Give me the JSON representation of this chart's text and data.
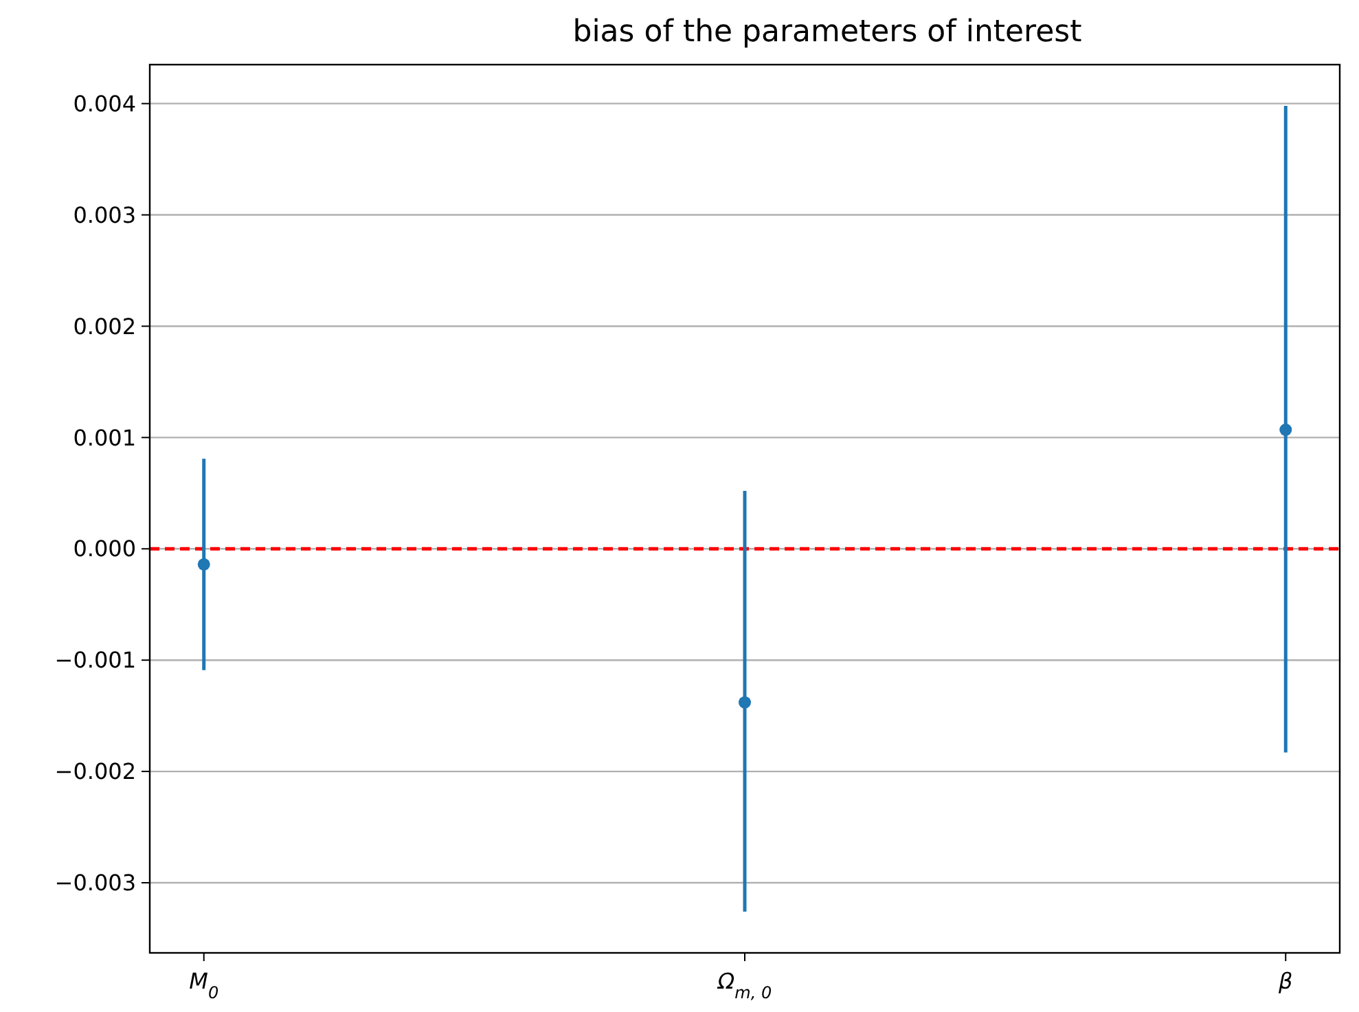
{
  "chart_data": {
    "type": "scatter",
    "title": "bias of the parameters of interest",
    "categories": [
      "M$_{0}$",
      "Ω$_{m, 0}$",
      "β"
    ],
    "series": [
      {
        "color": "#1f77b4",
        "values": [
          -0.00014,
          -0.00138,
          0.00107
        ],
        "errors": [
          [
            -0.00109,
            0.00081
          ],
          [
            -0.00326,
            0.00052
          ],
          [
            -0.00183,
            0.00398
          ]
        ]
      }
    ],
    "ylim": [
      -0.00363,
      0.00435
    ],
    "yticks": [
      {
        "value": -0.003,
        "label": "−0.003"
      },
      {
        "value": -0.002,
        "label": "−0.002"
      },
      {
        "value": -0.001,
        "label": "−0.001"
      },
      {
        "value": 0,
        "label": "0.000"
      },
      {
        "value": 0.001,
        "label": "0.001"
      },
      {
        "value": 0.002,
        "label": "0.002"
      },
      {
        "value": 0.003,
        "label": "0.003"
      },
      {
        "value": 0.004,
        "label": "0.004"
      }
    ],
    "grid": "y",
    "marker": "circle",
    "ref_lines": [
      {
        "axis": "y",
        "value": 0,
        "color": "#ff0000",
        "line_style": "dashed"
      }
    ]
  }
}
